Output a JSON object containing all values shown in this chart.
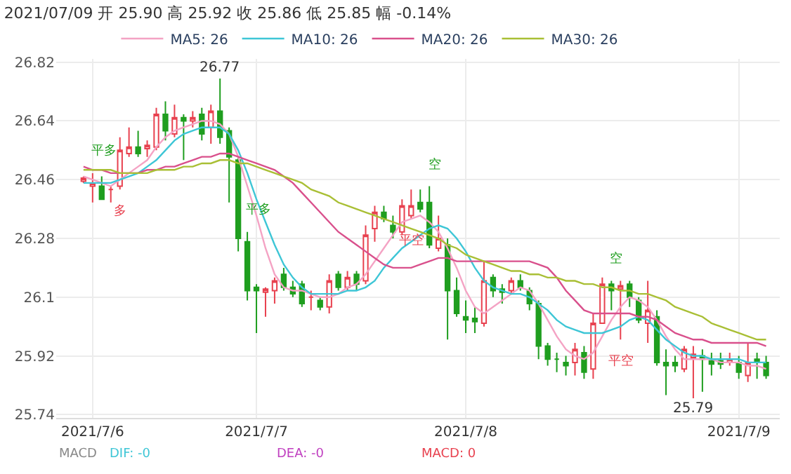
{
  "chart_data": {
    "type": "candlestick",
    "title": "2021/07/09 开 25.90 高 25.92 收 25.86 低 25.85 幅 -0.14%",
    "categories": [
      null,
      "2021/7/6",
      null,
      null,
      null,
      null,
      null,
      null,
      null,
      null,
      null,
      null,
      null,
      null,
      null,
      null,
      null,
      null,
      null,
      "2021/7/7",
      null,
      null,
      null,
      null,
      null,
      null,
      null,
      null,
      null,
      null,
      null,
      null,
      null,
      null,
      null,
      null,
      null,
      null,
      null,
      null,
      null,
      null,
      "2021/7/8",
      null,
      null,
      null,
      null,
      null,
      null,
      null,
      null,
      null,
      null,
      null,
      null,
      null,
      null,
      null,
      null,
      null,
      null,
      null,
      null,
      null,
      null,
      null,
      null,
      null,
      null,
      null,
      null,
      null,
      "2021/7/9",
      null,
      null,
      null
    ],
    "ohlc": [
      [
        26.455,
        26.47,
        26.45,
        26.465
      ],
      [
        26.44,
        26.48,
        26.39,
        26.45
      ],
      [
        26.44,
        26.47,
        26.4,
        26.4
      ],
      [
        26.43,
        26.44,
        26.39,
        26.43
      ],
      [
        26.44,
        26.59,
        26.43,
        26.55
      ],
      [
        26.54,
        26.62,
        26.53,
        26.56
      ],
      [
        26.56,
        26.61,
        26.53,
        26.54
      ],
      [
        26.555,
        26.58,
        26.53,
        26.565
      ],
      [
        26.56,
        26.68,
        26.55,
        26.66
      ],
      [
        26.66,
        26.7,
        26.58,
        26.61
      ],
      [
        26.6,
        26.69,
        26.59,
        26.65
      ],
      [
        26.65,
        26.66,
        26.52,
        26.64
      ],
      [
        26.64,
        26.67,
        26.62,
        26.65
      ],
      [
        26.66,
        26.68,
        26.58,
        26.6
      ],
      [
        26.62,
        26.69,
        26.57,
        26.67
      ],
      [
        26.67,
        26.77,
        26.57,
        26.59
      ],
      [
        26.61,
        26.62,
        26.39,
        26.53
      ],
      [
        26.52,
        26.53,
        26.24,
        26.28
      ],
      [
        26.27,
        26.3,
        26.09,
        26.12
      ],
      [
        26.13,
        26.14,
        25.99,
        26.12
      ],
      [
        26.115,
        26.13,
        26.04,
        26.125
      ],
      [
        26.12,
        26.16,
        26.08,
        26.15
      ],
      [
        26.17,
        26.19,
        26.12,
        26.13
      ],
      [
        26.13,
        26.15,
        26.1,
        26.11
      ],
      [
        26.14,
        26.15,
        26.07,
        26.08
      ],
      [
        26.1,
        26.12,
        26.06,
        26.1
      ],
      [
        26.09,
        26.1,
        26.06,
        26.07
      ],
      [
        26.07,
        26.17,
        26.05,
        26.15
      ],
      [
        26.17,
        26.18,
        26.12,
        26.13
      ],
      [
        26.13,
        26.18,
        26.12,
        26.16
      ],
      [
        26.17,
        26.18,
        26.12,
        26.14
      ],
      [
        26.15,
        26.32,
        26.14,
        26.29
      ],
      [
        26.31,
        26.38,
        26.27,
        26.36
      ],
      [
        26.36,
        26.38,
        26.33,
        26.34
      ],
      [
        26.32,
        26.35,
        26.28,
        26.3
      ],
      [
        26.3,
        26.4,
        26.29,
        26.38
      ],
      [
        26.35,
        26.43,
        26.34,
        26.38
      ],
      [
        26.39,
        26.43,
        26.36,
        26.37
      ],
      [
        26.39,
        26.44,
        26.25,
        26.26
      ],
      [
        26.25,
        26.35,
        26.24,
        26.28
      ],
      [
        26.26,
        26.28,
        25.97,
        26.12
      ],
      [
        26.12,
        26.16,
        26.04,
        26.05
      ],
      [
        26.04,
        26.09,
        25.99,
        26.03
      ],
      [
        26.035,
        26.07,
        25.99,
        26.025
      ],
      [
        26.02,
        26.21,
        26.01,
        26.15
      ],
      [
        26.16,
        26.17,
        26.1,
        26.12
      ],
      [
        26.125,
        26.14,
        26.08,
        26.115
      ],
      [
        26.12,
        26.16,
        26.11,
        26.15
      ],
      [
        26.15,
        26.17,
        26.12,
        26.13
      ],
      [
        26.12,
        26.13,
        26.06,
        26.08
      ],
      [
        26.08,
        26.09,
        25.91,
        25.95
      ],
      [
        25.95,
        25.96,
        25.89,
        25.91
      ],
      [
        25.91,
        25.93,
        25.87,
        25.91
      ],
      [
        25.9,
        25.92,
        25.86,
        25.89
      ],
      [
        25.9,
        25.96,
        25.86,
        25.94
      ],
      [
        25.93,
        25.95,
        25.85,
        25.87
      ],
      [
        25.88,
        26.05,
        25.85,
        26.02
      ],
      [
        26.02,
        26.16,
        26.02,
        26.14
      ],
      [
        26.14,
        26.15,
        26.06,
        26.12
      ],
      [
        26.125,
        26.15,
        25.97,
        26.135
      ],
      [
        26.14,
        26.15,
        26.07,
        26.1
      ],
      [
        26.09,
        26.1,
        26.02,
        26.03
      ],
      [
        26.02,
        26.15,
        25.96,
        26.06
      ],
      [
        26.04,
        26.06,
        25.89,
        25.9
      ],
      [
        25.9,
        25.94,
        25.8,
        25.89
      ],
      [
        25.9,
        25.92,
        25.87,
        25.89
      ],
      [
        25.88,
        25.95,
        25.87,
        25.94
      ],
      [
        25.915,
        25.95,
        25.79,
        25.925
      ],
      [
        25.92,
        25.94,
        25.81,
        25.91
      ],
      [
        25.905,
        25.93,
        25.86,
        25.895
      ],
      [
        25.905,
        25.93,
        25.88,
        25.895
      ],
      [
        25.9,
        25.93,
        25.89,
        25.91
      ],
      [
        25.9,
        25.92,
        25.85,
        25.87
      ],
      [
        25.86,
        25.96,
        25.84,
        25.9
      ],
      [
        25.91,
        25.93,
        25.85,
        25.9
      ],
      [
        25.9,
        25.92,
        25.85,
        25.86
      ]
    ],
    "series": [
      {
        "name": "MA5: 26",
        "type": "line",
        "color": "#f4a3c4",
        "values": [
          26.47,
          26.46,
          26.45,
          26.44,
          26.46,
          26.48,
          26.5,
          26.52,
          26.56,
          26.59,
          26.61,
          26.62,
          26.63,
          26.64,
          26.64,
          26.63,
          26.6,
          26.53,
          26.44,
          26.35,
          26.25,
          26.17,
          26.13,
          26.12,
          26.12,
          26.11,
          26.1,
          26.1,
          26.11,
          26.13,
          26.14,
          26.17,
          26.21,
          26.25,
          26.29,
          26.33,
          26.34,
          26.35,
          26.33,
          26.3,
          26.25,
          26.19,
          26.12,
          26.07,
          26.05,
          26.07,
          26.09,
          26.11,
          26.13,
          26.12,
          26.08,
          26.03,
          25.98,
          25.94,
          25.92,
          25.91,
          25.93,
          25.98,
          26.03,
          26.07,
          26.1,
          26.09,
          26.07,
          26.03,
          25.98,
          25.94,
          25.91,
          25.91,
          25.91,
          25.91,
          25.9,
          25.9,
          25.9,
          25.89,
          25.89,
          25.88
        ]
      },
      {
        "name": "MA10: 26",
        "type": "line",
        "color": "#3ec6d6",
        "values": [
          26.45,
          26.45,
          26.45,
          26.45,
          26.46,
          26.47,
          26.48,
          26.5,
          26.52,
          26.55,
          26.58,
          26.6,
          26.61,
          26.62,
          26.62,
          26.62,
          26.6,
          26.55,
          26.48,
          26.4,
          26.33,
          26.26,
          26.2,
          26.16,
          26.13,
          26.11,
          26.11,
          26.11,
          26.11,
          26.12,
          26.12,
          26.13,
          26.15,
          26.19,
          26.22,
          26.25,
          26.27,
          26.29,
          26.31,
          26.32,
          26.31,
          26.28,
          26.24,
          26.19,
          26.15,
          26.13,
          26.12,
          26.11,
          26.11,
          26.1,
          26.08,
          26.06,
          26.03,
          26.01,
          26.0,
          25.99,
          25.99,
          25.99,
          26.0,
          26.01,
          26.03,
          26.04,
          26.03,
          26.0,
          25.97,
          25.95,
          25.93,
          25.92,
          25.92,
          25.91,
          25.91,
          25.91,
          25.91,
          25.9,
          25.9,
          25.9
        ]
      },
      {
        "name": "MA20: 26",
        "type": "line",
        "color": "#d9508c",
        "values": [
          26.5,
          26.49,
          26.49,
          26.48,
          26.48,
          26.48,
          26.48,
          26.49,
          26.49,
          26.5,
          26.5,
          26.51,
          26.52,
          26.53,
          26.53,
          26.54,
          26.54,
          26.53,
          26.52,
          26.51,
          26.5,
          26.49,
          26.47,
          26.45,
          26.42,
          26.39,
          26.36,
          26.33,
          26.3,
          26.28,
          26.26,
          26.24,
          26.22,
          26.2,
          26.19,
          26.19,
          26.19,
          26.2,
          26.21,
          26.22,
          26.22,
          26.21,
          26.21,
          26.21,
          26.21,
          26.21,
          26.21,
          26.21,
          26.21,
          26.21,
          26.2,
          26.19,
          26.16,
          26.12,
          26.09,
          26.06,
          26.05,
          26.05,
          26.05,
          26.05,
          26.05,
          26.04,
          26.04,
          26.03,
          26.01,
          25.99,
          25.98,
          25.97,
          25.97,
          25.96,
          25.96,
          25.96,
          25.96,
          25.96,
          25.96,
          25.95
        ]
      },
      {
        "name": "MA30: 26",
        "type": "line",
        "color": "#a9bf35",
        "values": [
          26.49,
          26.49,
          26.49,
          26.49,
          26.48,
          26.48,
          26.48,
          26.48,
          26.49,
          26.49,
          26.49,
          26.5,
          26.5,
          26.51,
          26.51,
          26.52,
          26.52,
          26.51,
          26.51,
          26.5,
          26.49,
          26.48,
          26.47,
          26.46,
          26.45,
          26.43,
          26.42,
          26.41,
          26.39,
          26.38,
          26.37,
          26.36,
          26.35,
          26.34,
          26.33,
          26.32,
          26.31,
          26.3,
          26.29,
          26.28,
          26.26,
          26.25,
          26.23,
          26.22,
          26.21,
          26.2,
          26.19,
          26.18,
          26.18,
          26.17,
          26.17,
          26.16,
          26.16,
          26.15,
          26.15,
          26.14,
          26.14,
          26.13,
          26.13,
          26.12,
          26.12,
          26.11,
          26.11,
          26.1,
          26.09,
          26.07,
          26.06,
          26.05,
          26.04,
          26.02,
          26.01,
          26.0,
          25.99,
          25.98,
          25.97,
          25.97
        ]
      }
    ],
    "ylim": [
      25.73,
      26.83
    ],
    "yticks": [
      25.74,
      25.92,
      26.1,
      26.28,
      26.46,
      26.64,
      26.82
    ],
    "grid": true,
    "legend": "top",
    "annotations": [
      {
        "text": "26.77",
        "y": 26.77
      },
      {
        "text": "25.79",
        "y": 25.79
      },
      {
        "text": "平多",
        "y": 26.48
      },
      {
        "text": "多",
        "y": 26.43
      },
      {
        "text": "平多",
        "y": 26.3
      },
      {
        "text": "平空",
        "y": 26.34
      },
      {
        "text": "空",
        "y": 26.44
      },
      {
        "text": "空",
        "y": 26.15
      },
      {
        "text": "平空",
        "y": 25.97
      },
      "MACD",
      "DIF: -0",
      "DEA: -0",
      "MACD: 0"
    ]
  }
}
